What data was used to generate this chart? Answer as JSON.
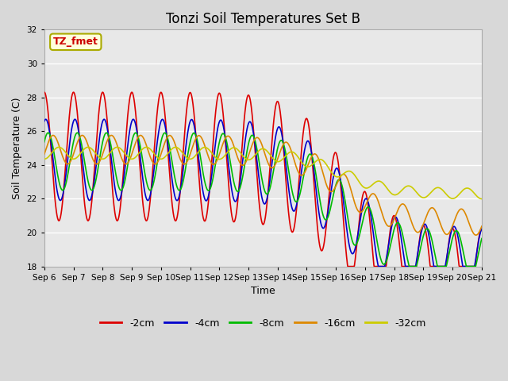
{
  "title": "Tonzi Soil Temperatures Set B",
  "xlabel": "Time",
  "ylabel": "Soil Temperature (C)",
  "ylim": [
    18,
    32
  ],
  "yticks": [
    18,
    20,
    22,
    24,
    26,
    28,
    30,
    32
  ],
  "annotation_text": "TZ_fmet",
  "annotation_color": "#cc0000",
  "annotation_bg": "#ffffdd",
  "annotation_border": "#aaaa00",
  "series_colors": {
    "-2cm": "#dd0000",
    "-4cm": "#0000cc",
    "-8cm": "#00bb00",
    "-16cm": "#dd8800",
    "-32cm": "#cccc00"
  },
  "legend_order": [
    "-2cm",
    "-4cm",
    "-8cm",
    "-16cm",
    "-32cm"
  ],
  "background_color": "#e8e8e8",
  "grid_color": "#ffffff",
  "n_days": 15,
  "start_day": 6,
  "points_per_day": 96,
  "fig_width": 6.4,
  "fig_height": 4.8,
  "dpi": 100
}
